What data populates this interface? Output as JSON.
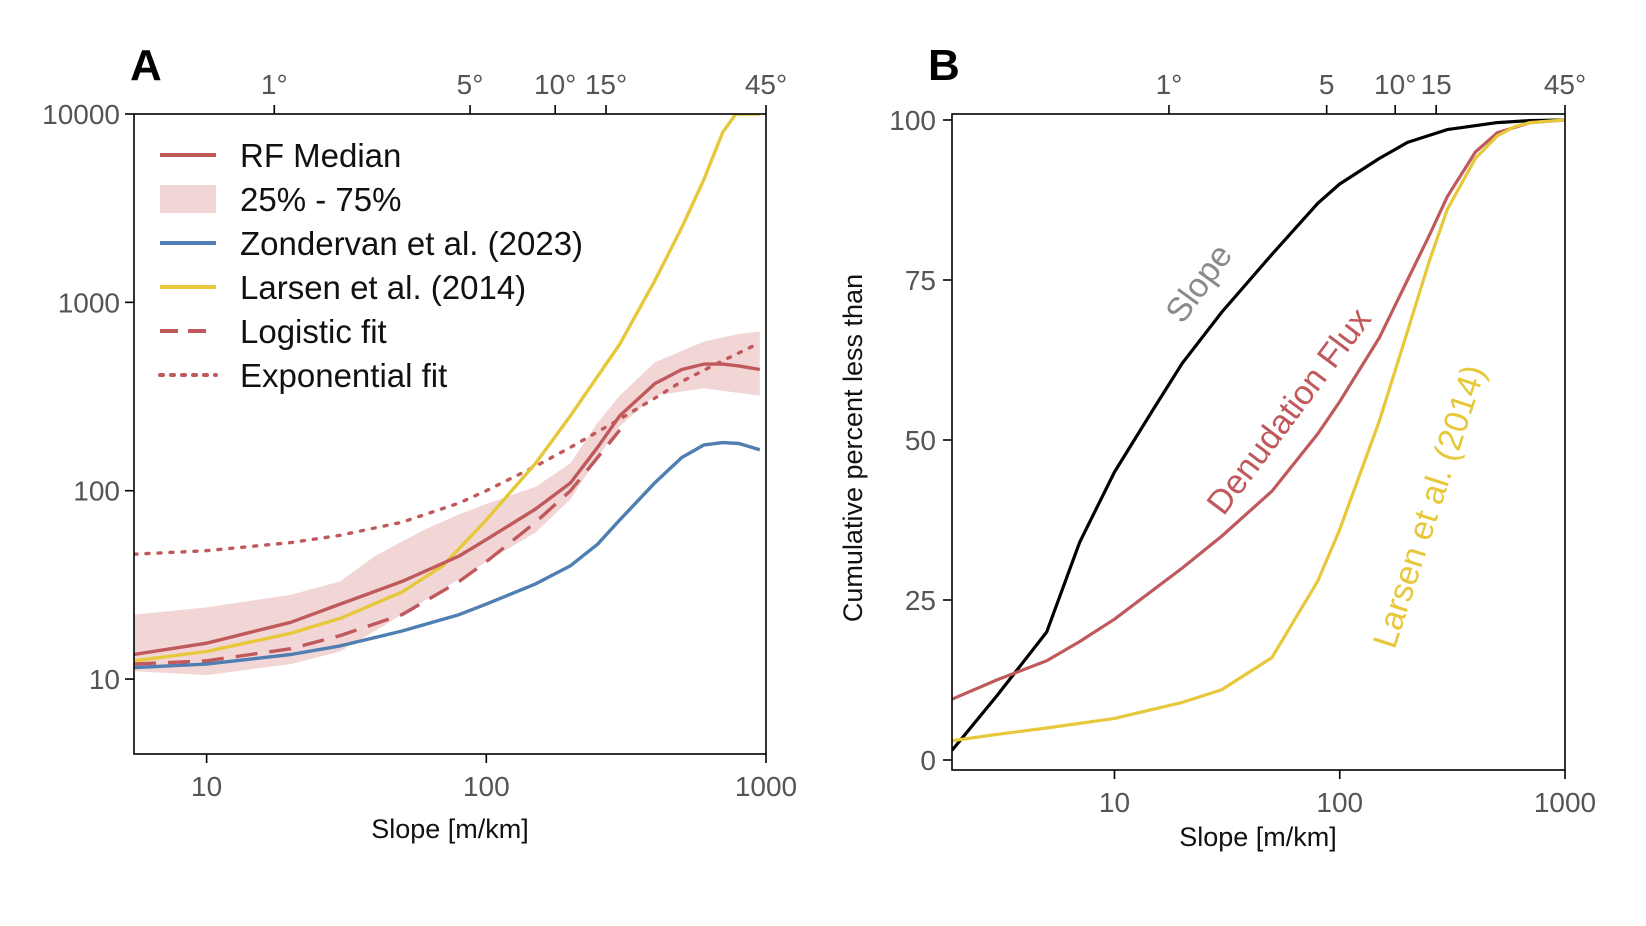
{
  "colors": {
    "red": "#c0595b",
    "band": "#f2d6d6",
    "blue": "#4f7fb2",
    "yellow": "#e6c83a",
    "black": "#000000",
    "gray_label": "#8a8a8a"
  },
  "panel_a": {
    "letter": "A",
    "xlabel": "Slope [m/km]",
    "x_ticks": [
      "10",
      "100",
      "1000"
    ],
    "y_ticks": [
      "10",
      "100",
      "1000",
      "10000"
    ],
    "top_ticks": [
      "1°",
      "5°",
      "10°",
      "15°",
      "45°"
    ],
    "legend": [
      {
        "label": "RF Median",
        "style": "solid",
        "color": "#c0595b"
      },
      {
        "label": "25% - 75%",
        "style": "band",
        "color": "#f2d6d6"
      },
      {
        "label": "Zondervan et al. (2023)",
        "style": "solid",
        "color": "#4f7fb2"
      },
      {
        "label": "Larsen et al. (2014)",
        "style": "solid",
        "color": "#e6c83a"
      },
      {
        "label": "Logistic fit",
        "style": "dashed",
        "color": "#c0595b"
      },
      {
        "label": "Exponential fit",
        "style": "dotted",
        "color": "#c0595b"
      }
    ]
  },
  "panel_b": {
    "letter": "B",
    "xlabel": "Slope [m/km]",
    "ylabel": "Cumulative percent less than",
    "x_ticks": [
      "10",
      "100",
      "1000"
    ],
    "y_ticks": [
      "0",
      "25",
      "50",
      "75",
      "100"
    ],
    "top_ticks": [
      "1°",
      "5",
      "10°",
      "15",
      "45°"
    ],
    "annotations": [
      "Slope",
      "Denudation Flux",
      "Larsen et al. (2014)"
    ]
  },
  "chart_data": [
    {
      "type": "line",
      "panel": "A",
      "xlabel": "Slope [m/km]",
      "ylabel": "",
      "x_scale": "log",
      "y_scale": "log",
      "xlim": [
        5.5,
        1000
      ],
      "ylim": [
        4,
        10000
      ],
      "top_axis_degrees": [
        1,
        5,
        10,
        15,
        45
      ],
      "series": [
        {
          "name": "RF Median",
          "style": "solid",
          "color": "#c0595b",
          "x": [
            5.5,
            10,
            20,
            30,
            50,
            80,
            100,
            150,
            200,
            250,
            300,
            400,
            500,
            600,
            700,
            800,
            950
          ],
          "y": [
            13.5,
            15.5,
            20,
            25,
            33,
            45,
            55,
            80,
            110,
            170,
            250,
            370,
            440,
            470,
            470,
            460,
            440
          ]
        },
        {
          "name": "25% - 75%",
          "style": "band",
          "color": "#f2d6d6",
          "x": [
            5.5,
            10,
            20,
            30,
            40,
            60,
            80,
            100,
            150,
            200,
            250,
            300,
            400,
            600,
            800,
            950
          ],
          "lower": [
            11,
            10.5,
            12,
            14,
            18,
            26,
            34,
            42,
            60,
            90,
            150,
            220,
            320,
            350,
            330,
            320
          ],
          "upper": [
            22,
            24,
            28,
            33,
            45,
            62,
            75,
            85,
            105,
            140,
            230,
            320,
            480,
            620,
            680,
            700
          ]
        },
        {
          "name": "Zondervan et al. (2023)",
          "style": "solid",
          "color": "#4f7fb2",
          "x": [
            5.5,
            10,
            20,
            30,
            50,
            80,
            100,
            150,
            200,
            250,
            300,
            400,
            500,
            600,
            700,
            800,
            950
          ],
          "y": [
            11.5,
            12,
            13.5,
            15,
            18,
            22,
            25,
            32,
            40,
            52,
            70,
            110,
            150,
            175,
            180,
            178,
            165
          ]
        },
        {
          "name": "Larsen et al. (2014)",
          "style": "solid",
          "color": "#e6c83a",
          "x": [
            5.5,
            10,
            20,
            30,
            50,
            70,
            100,
            150,
            200,
            300,
            400,
            500,
            600,
            700,
            780,
            950
          ],
          "y": [
            12.5,
            14,
            17.5,
            21,
            29,
            40,
            70,
            140,
            250,
            600,
            1300,
            2500,
            4500,
            8000,
            10000,
            10000
          ]
        },
        {
          "name": "Logistic fit",
          "style": "dashed",
          "color": "#c0595b",
          "x": [
            5.5,
            10,
            20,
            30,
            50,
            80,
            100,
            150,
            200,
            250,
            300
          ],
          "y": [
            12,
            12.5,
            14.5,
            17,
            22,
            33,
            42,
            68,
            100,
            150,
            210
          ]
        },
        {
          "name": "Exponential fit",
          "style": "dotted",
          "color": "#c0595b",
          "x": [
            5.5,
            10,
            20,
            30,
            50,
            80,
            100,
            150,
            200,
            300,
            400,
            500,
            700,
            950
          ],
          "y": [
            46,
            48,
            53,
            58,
            68,
            86,
            100,
            135,
            170,
            240,
            310,
            380,
            490,
            610
          ]
        }
      ]
    },
    {
      "type": "line",
      "panel": "B",
      "xlabel": "Slope [m/km]",
      "ylabel": "Cumulative percent less than",
      "x_scale": "log",
      "y_scale": "linear",
      "xlim": [
        1.9,
        1000
      ],
      "ylim": [
        0,
        100
      ],
      "top_axis_degrees": [
        1,
        5,
        10,
        15,
        45
      ],
      "series": [
        {
          "annotation": "Slope",
          "style": "solid",
          "color": "#000000",
          "x": [
            1.9,
            3,
            5,
            7,
            10,
            15,
            20,
            30,
            50,
            80,
            100,
            150,
            200,
            300,
            500,
            700,
            1000
          ],
          "y": [
            1.5,
            10,
            20,
            34,
            45,
            55,
            62,
            70,
            79,
            87,
            90,
            94,
            96.5,
            98.5,
            99.6,
            99.9,
            100
          ]
        },
        {
          "annotation": "Denudation Flux",
          "style": "solid",
          "color": "#c0595b",
          "x": [
            1.9,
            3,
            5,
            7,
            10,
            20,
            30,
            50,
            80,
            100,
            150,
            200,
            250,
            300,
            400,
            500,
            700,
            1000
          ],
          "y": [
            9.5,
            12.5,
            15.5,
            18.5,
            22,
            30,
            35,
            42,
            51,
            56,
            66,
            75,
            82,
            88,
            95,
            98,
            99.6,
            100
          ]
        },
        {
          "annotation": "Larsen et al. (2014)",
          "style": "solid",
          "color": "#e6c83a",
          "x": [
            1.9,
            3,
            5,
            10,
            20,
            30,
            50,
            80,
            100,
            150,
            200,
            250,
            300,
            400,
            500,
            600,
            700,
            1000
          ],
          "y": [
            3,
            4,
            5,
            6.5,
            9,
            11,
            16,
            28,
            36,
            53,
            67,
            78,
            86,
            94,
            97.5,
            99,
            99.6,
            100
          ]
        }
      ]
    }
  ]
}
